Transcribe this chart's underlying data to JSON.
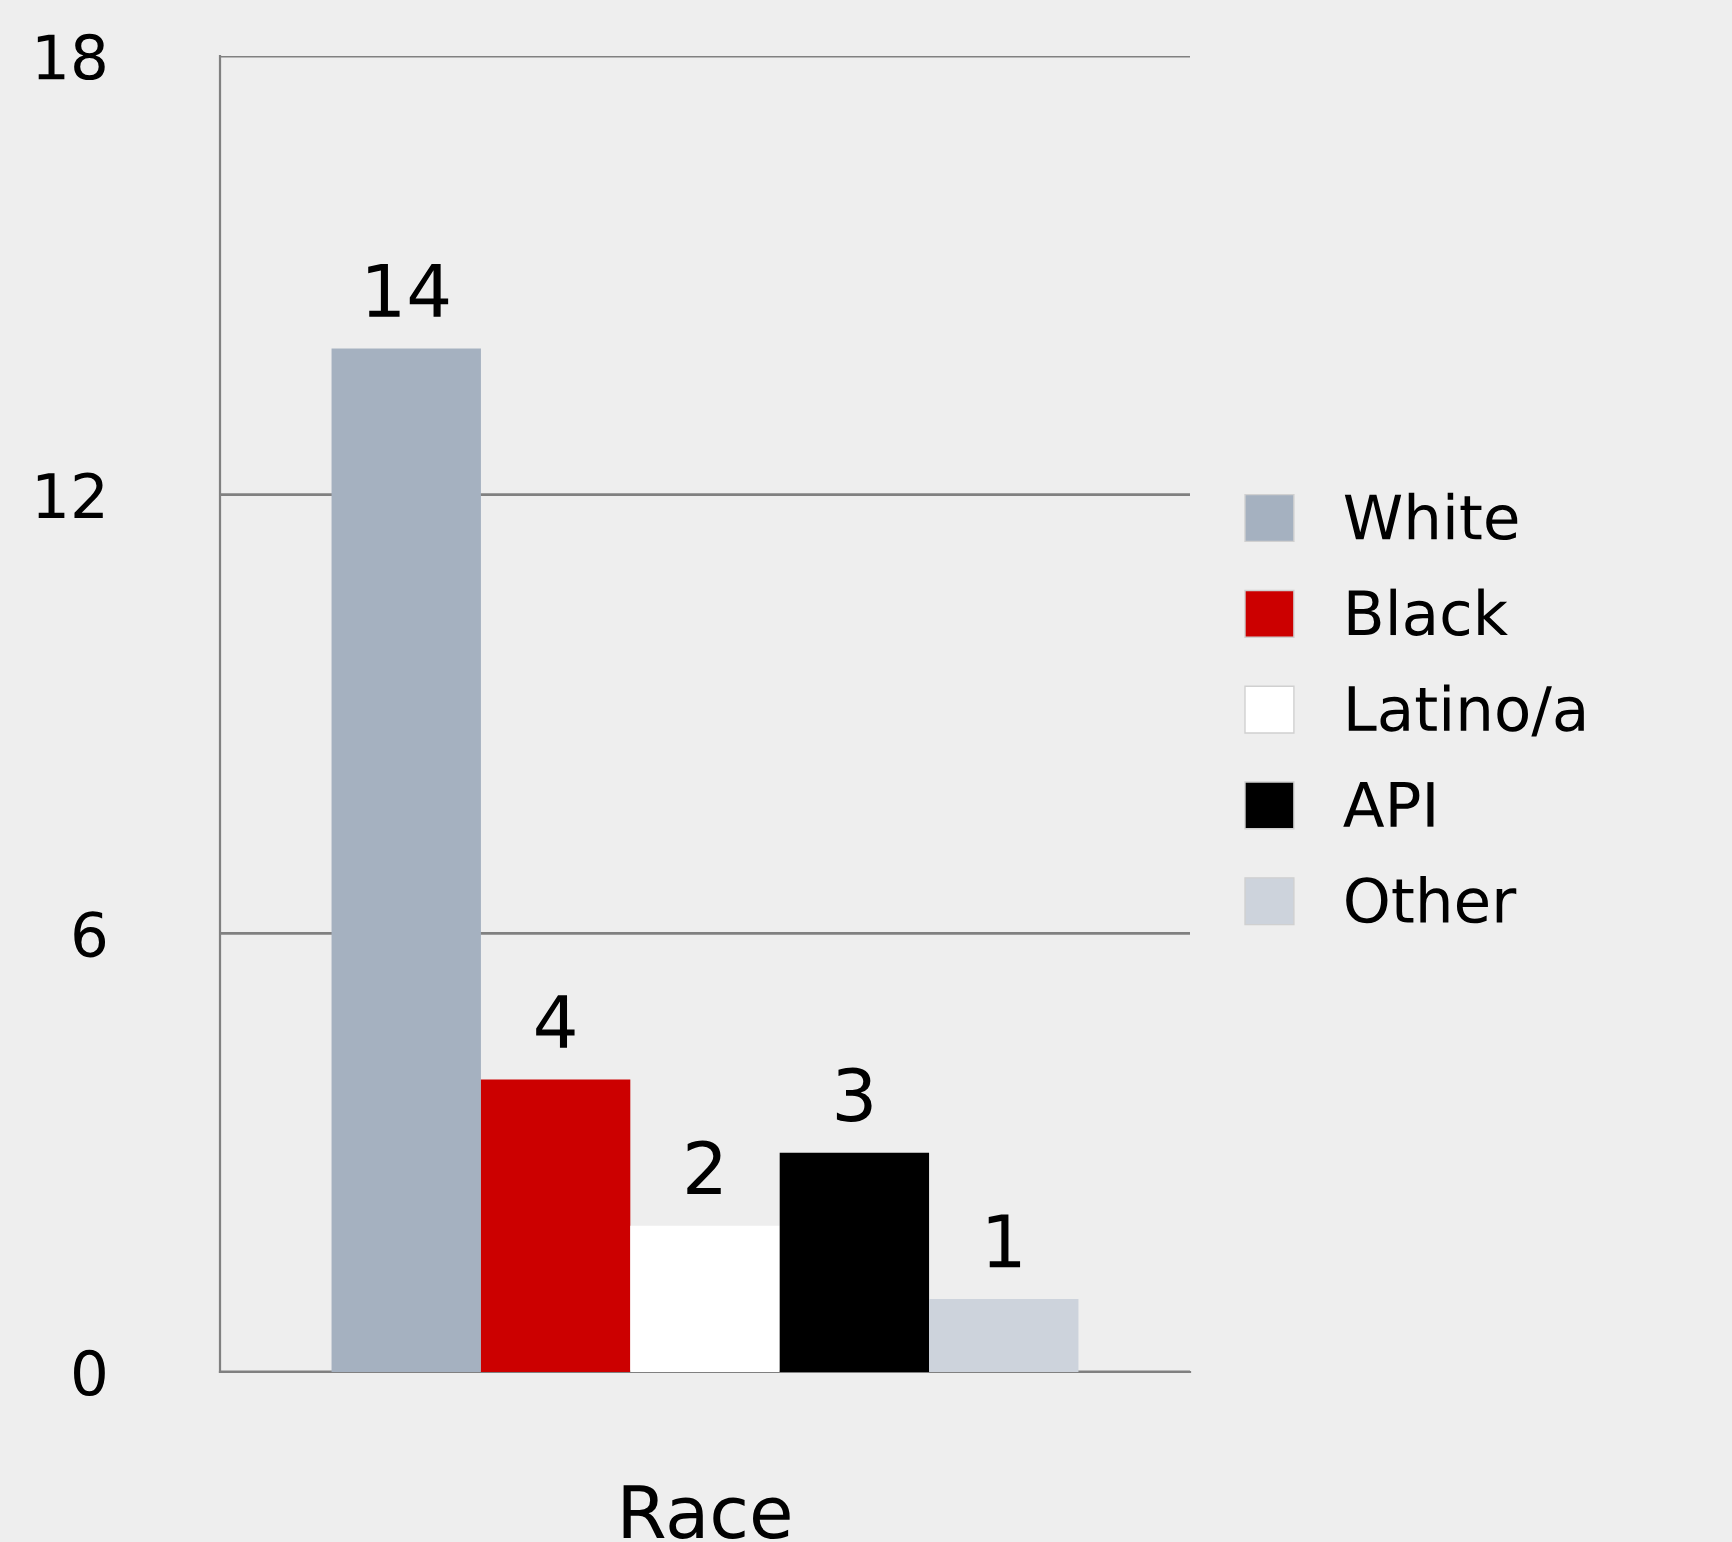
{
  "chart_data": {
    "type": "bar",
    "xlabel": "Race",
    "categories": [
      null
    ],
    "series": [
      {
        "name": "White",
        "color": "#a5b1c0",
        "values": [
          14
        ]
      },
      {
        "name": "Black",
        "color": "#cc0000",
        "values": [
          4
        ]
      },
      {
        "name": "Latino/a",
        "color": "#ffffff",
        "values": [
          2
        ]
      },
      {
        "name": "API",
        "color": "#000000",
        "values": [
          3
        ]
      },
      {
        "name": "Other",
        "color": "#cdd3dc",
        "values": [
          1
        ]
      }
    ],
    "ylim": [
      0,
      18
    ],
    "yticks": [
      0,
      6,
      12,
      18
    ],
    "grid": "y",
    "legend": "right",
    "data_labels": true
  }
}
